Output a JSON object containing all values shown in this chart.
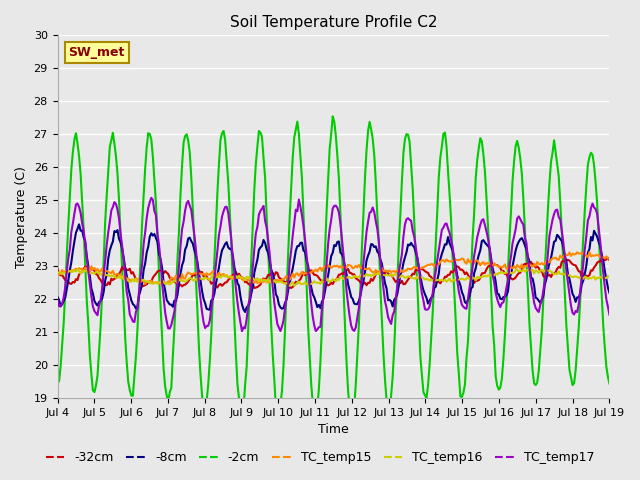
{
  "title": "Soil Temperature Profile C2",
  "xlabel": "Time",
  "ylabel": "Temperature (C)",
  "ylim": [
    19.0,
    30.0
  ],
  "yticks": [
    19.0,
    20.0,
    21.0,
    22.0,
    23.0,
    24.0,
    25.0,
    26.0,
    27.0,
    28.0,
    29.0,
    30.0
  ],
  "bg_color": "#e8e8e8",
  "plot_bg": "#e8e8e8",
  "grid_color": "#ffffff",
  "lines": {
    "neg32cm": {
      "color": "#cc0000",
      "label": "-32cm",
      "lw": 1.5
    },
    "neg8cm": {
      "color": "#000080",
      "label": "-8cm",
      "lw": 1.5
    },
    "neg2cm": {
      "color": "#00cc00",
      "label": "-2cm",
      "lw": 1.5
    },
    "tc15": {
      "color": "#ff8800",
      "label": "TC_temp15",
      "lw": 1.5
    },
    "tc16": {
      "color": "#cccc00",
      "label": "TC_temp16",
      "lw": 1.5
    },
    "tc17": {
      "color": "#9900cc",
      "label": "TC_temp17",
      "lw": 1.5
    }
  },
  "sw_met_box": {
    "text": "SW_met",
    "facecolor": "#ffff99",
    "edgecolor": "#aa8800",
    "textcolor": "#880000",
    "fontsize": 9,
    "fontweight": "bold"
  },
  "legend": {
    "loc": "lower center",
    "ncol": 6,
    "fontsize": 9
  }
}
